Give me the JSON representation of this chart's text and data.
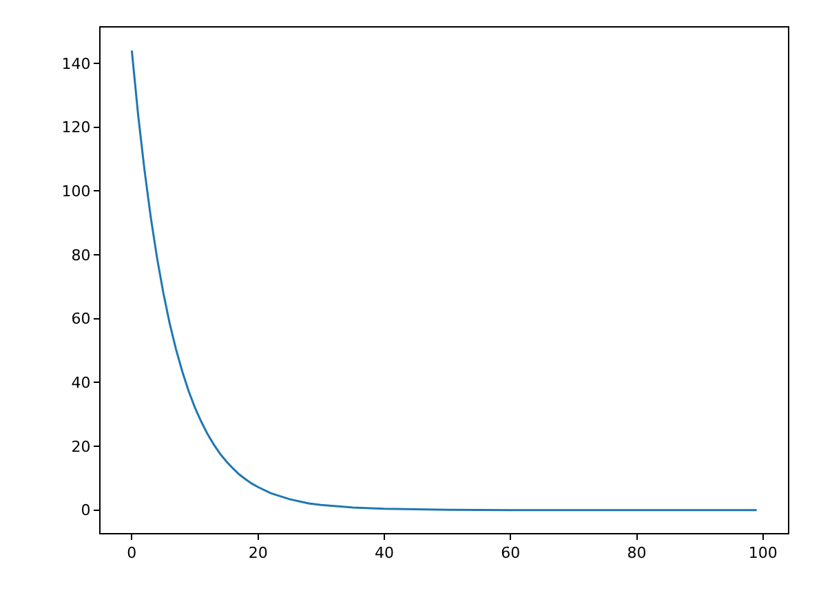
{
  "chart_data": {
    "type": "line",
    "x": [
      0,
      1,
      2,
      3,
      4,
      5,
      6,
      7,
      8,
      9,
      10,
      11,
      12,
      13,
      14,
      15,
      16,
      17,
      18,
      19,
      20,
      22,
      25,
      28,
      30,
      35,
      40,
      50,
      60,
      70,
      80,
      90,
      99
    ],
    "series": [
      {
        "color": "#1f77b4",
        "values": [
          144,
          123.9,
          106.7,
          91.8,
          79.0,
          68.0,
          58.5,
          50.4,
          43.4,
          37.3,
          32.1,
          27.7,
          23.8,
          20.5,
          17.6,
          15.2,
          13.1,
          11.2,
          9.7,
          8.3,
          7.2,
          5.3,
          3.4,
          2.1,
          1.6,
          0.8,
          0.4,
          0.1,
          0,
          0,
          0,
          0,
          0
        ]
      }
    ],
    "xlim": [
      -4.95,
      103.95
    ],
    "ylim": [
      -7.2,
      151.2
    ],
    "xticks": [
      0,
      20,
      40,
      60,
      80,
      100
    ],
    "yticks": [
      0,
      20,
      40,
      60,
      80,
      100,
      120,
      140
    ],
    "grid": false,
    "legend": false,
    "marker": "none",
    "line_style": "solid"
  }
}
